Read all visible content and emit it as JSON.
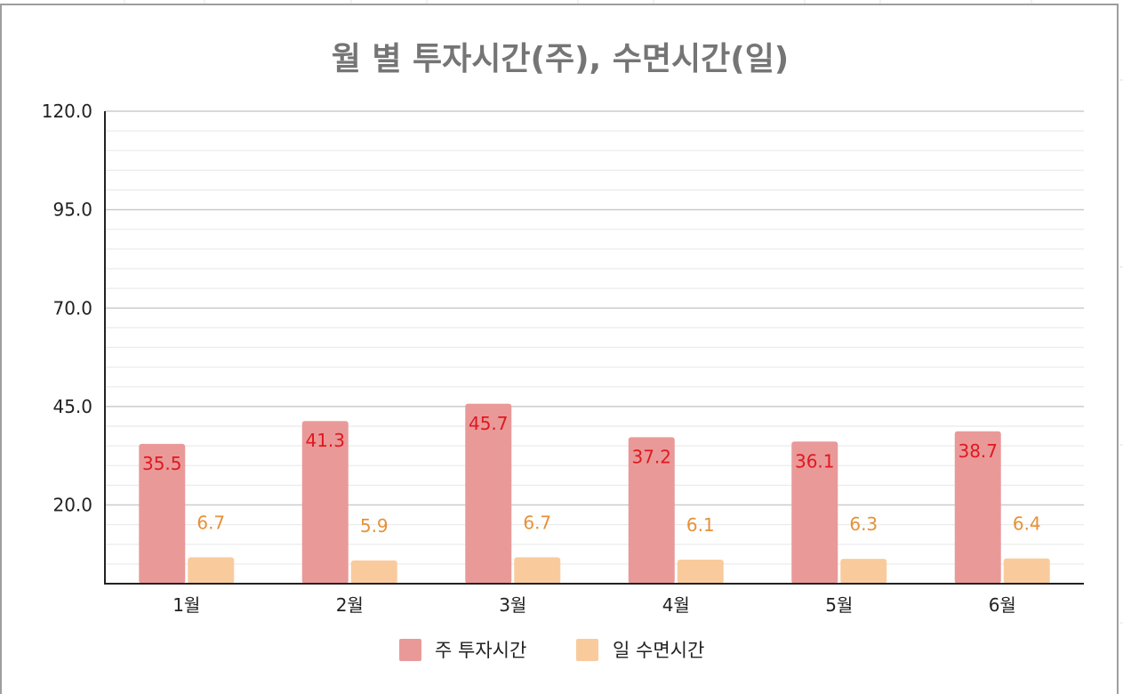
{
  "chart_data": {
    "type": "bar",
    "title": "월 별 투자시간(주), 수면시간(일)",
    "categories": [
      "1월",
      "2월",
      "3월",
      "4월",
      "5월",
      "6월"
    ],
    "series": [
      {
        "name": "주 투자시간",
        "values": [
          35.5,
          41.3,
          45.7,
          37.2,
          36.1,
          38.7
        ],
        "color": "#ea9999",
        "label_color": "#e0191f"
      },
      {
        "name": "일 수면시간",
        "values": [
          6.7,
          5.9,
          6.7,
          6.1,
          6.3,
          6.4
        ],
        "color": "#f9cb9c",
        "label_color": "#e69138"
      }
    ],
    "ylim": [
      0,
      120
    ],
    "y_tick_labels": [
      "20.0",
      "45.0",
      "70.0",
      "95.0",
      "120.0"
    ],
    "xlabel": "",
    "ylabel": "",
    "grid": true,
    "legend_position": "bottom"
  }
}
